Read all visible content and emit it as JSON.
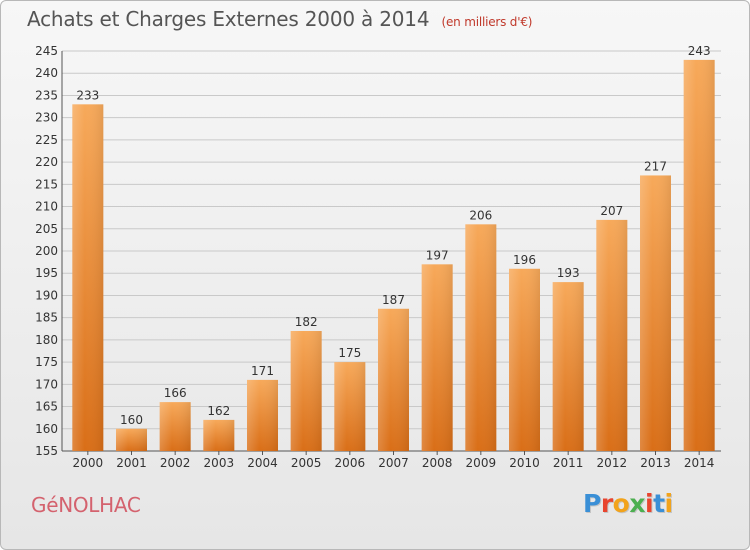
{
  "title": "Achats et Charges Externes 2000 à 2014",
  "subtitle": "(en milliers d'€)",
  "town": "GéNOLHAC",
  "logo": {
    "letters": [
      "P",
      "r",
      "o",
      "x",
      "i",
      "t",
      "i"
    ],
    "colors": [
      "#3a8fd6",
      "#e8442e",
      "#f2a31b",
      "#4caf50",
      "#e8442e",
      "#3a8fd6",
      "#f2a31b"
    ]
  },
  "chart_data": {
    "type": "bar",
    "categories": [
      "2000",
      "2001",
      "2002",
      "2003",
      "2004",
      "2005",
      "2006",
      "2007",
      "2008",
      "2009",
      "2010",
      "2011",
      "2012",
      "2013",
      "2014"
    ],
    "values": [
      233,
      160,
      166,
      162,
      171,
      182,
      175,
      187,
      197,
      206,
      196,
      193,
      207,
      217,
      243
    ],
    "ylim": [
      155,
      245
    ],
    "yticks": [
      155,
      160,
      165,
      170,
      175,
      180,
      185,
      190,
      195,
      200,
      205,
      210,
      215,
      220,
      225,
      230,
      235,
      240,
      245
    ],
    "grid": true,
    "bar_color": "#f0913a",
    "xlabel": "",
    "ylabel": ""
  }
}
